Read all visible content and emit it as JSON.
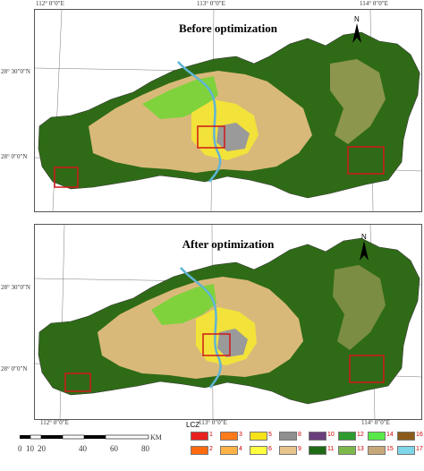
{
  "top_panel": {
    "title": "Before optimization"
  },
  "bottom_panel": {
    "title": "After optimization"
  },
  "longitude_labels": [
    "112° 0″0″E",
    "113° 0″0″E",
    "114° 0″0″E"
  ],
  "latitude_labels": [
    "28° 30″0″N",
    "28° 0″0″N"
  ],
  "north_arrow": "N",
  "scale_bar": {
    "ticks": [
      "0",
      "10",
      "20",
      "40",
      "60",
      "80"
    ],
    "unit": "KM"
  },
  "legend": {
    "title": "LCZ",
    "classes": [
      {
        "label": "1",
        "color": "#e8201f"
      },
      {
        "label": "2",
        "color": "#ff6a0f"
      },
      {
        "label": "3",
        "color": "#ff7a1a"
      },
      {
        "label": "4",
        "color": "#ffb347"
      },
      {
        "label": "5",
        "color": "#f6e21a"
      },
      {
        "label": "6",
        "color": "#ffff3f"
      },
      {
        "label": "8",
        "color": "#8f8f8f"
      },
      {
        "label": "9",
        "color": "#e8c38b"
      },
      {
        "label": "10",
        "color": "#6b3f7c"
      },
      {
        "label": "11",
        "color": "#1f6a14"
      },
      {
        "label": "12",
        "color": "#2e9b2e"
      },
      {
        "label": "13",
        "color": "#7cb84a"
      },
      {
        "label": "14",
        "color": "#59e84a"
      },
      {
        "label": "15",
        "color": "#c8a87a"
      },
      {
        "label": "16",
        "color": "#8b5a1a"
      },
      {
        "label": "17",
        "color": "#7fd6e8"
      }
    ]
  },
  "colors": {
    "forest": "#2f6b16",
    "urban": "#f2e23a",
    "builtup": "#9a9a9a",
    "sparse": "#d9b97a",
    "grass": "#7fd23c",
    "river": "#5fb5d6",
    "highlight_box": "#d01818"
  }
}
